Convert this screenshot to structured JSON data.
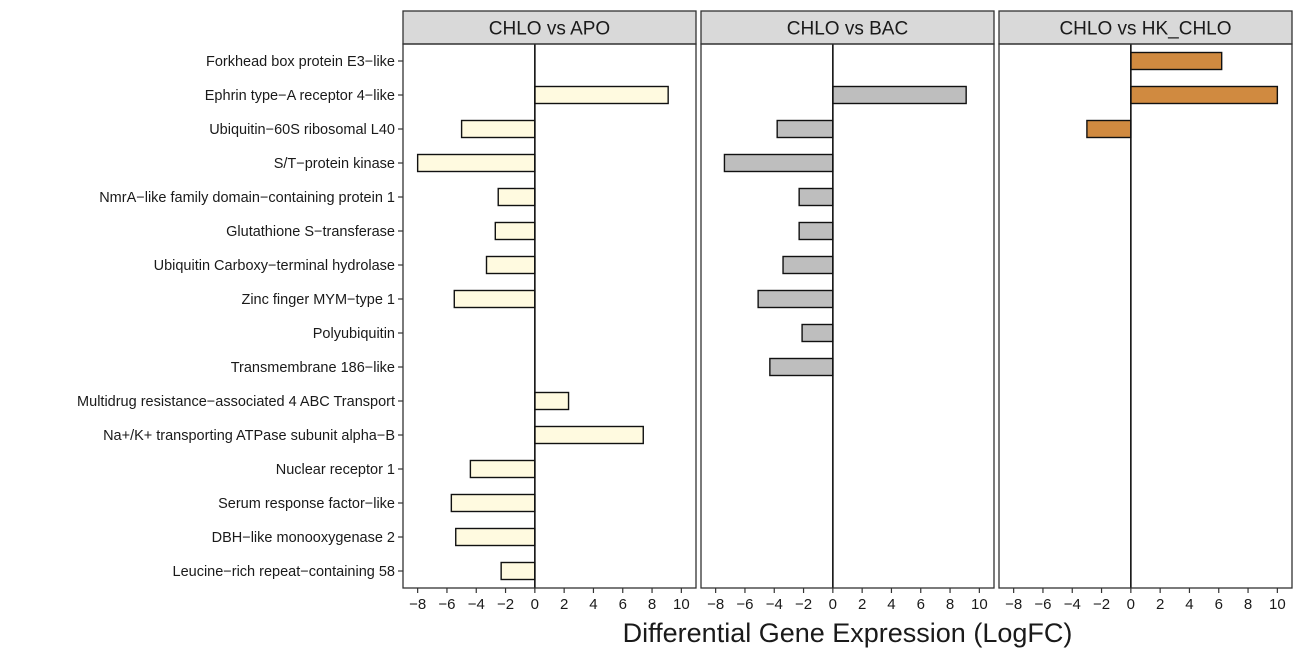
{
  "chart_data": {
    "type": "bar",
    "orientation": "horizontal",
    "categories": [
      "Forkhead box protein E3−like",
      "Ephrin type−A receptor 4−like",
      "Ubiquitin−60S ribosomal L40",
      "S/T−protein kinase",
      "NmrA−like family domain−containing protein 1",
      "Glutathione S−transferase",
      "Ubiquitin Carboxy−terminal hydrolase",
      "Zinc finger MYM−type 1",
      "Polyubiquitin",
      "Transmembrane 186−like",
      "Multidrug resistance−associated 4 ABC Transport",
      "Na+/K+ transporting ATPase subunit alpha−B",
      "Nuclear receptor 1",
      "Serum response factor−like",
      "DBH−like monooxygenase 2",
      "Leucine−rich repeat−containing 58"
    ],
    "panels": [
      {
        "title": "CHLO vs APO",
        "color": "#fffae0",
        "values": [
          null,
          9.1,
          -5.0,
          -8.0,
          -2.5,
          -2.7,
          -3.3,
          -5.5,
          null,
          null,
          2.3,
          7.4,
          -4.4,
          -5.7,
          -5.4,
          -2.3
        ]
      },
      {
        "title": "CHLO vs BAC",
        "color": "#bebebe",
        "values": [
          null,
          9.1,
          -3.8,
          -7.4,
          -2.3,
          -2.3,
          -3.4,
          -5.1,
          -2.1,
          -4.3,
          null,
          null,
          null,
          null,
          null,
          null
        ]
      },
      {
        "title": "CHLO vs HK_CHLO",
        "color": "#d08a40",
        "values": [
          6.2,
          10.0,
          -3.0,
          null,
          null,
          null,
          null,
          null,
          null,
          null,
          null,
          null,
          null,
          null,
          null,
          null
        ]
      }
    ],
    "xlabel": "Differential Gene Expression (LogFC)",
    "xlim": [
      -9,
      11
    ],
    "xticks": [
      "−8",
      "−6",
      "−4",
      "−2",
      "0",
      "2",
      "4",
      "6",
      "8",
      "10"
    ],
    "xtick_values": [
      -8,
      -6,
      -4,
      -2,
      0,
      2,
      4,
      6,
      8,
      10
    ],
    "grid": false,
    "legend": "none"
  }
}
